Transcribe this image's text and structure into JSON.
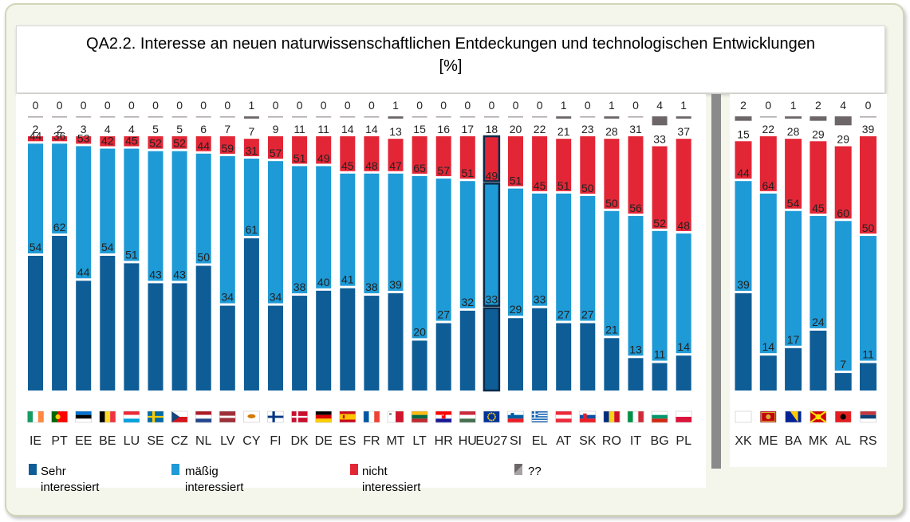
{
  "title": {
    "line1": "QA2.2. Interesse an neuen naturwissenschaftlichen Entdeckungen und technologischen Entwicklungen",
    "line2": "[%]"
  },
  "legend": [
    {
      "label": "Sehr",
      "label2": "interessiert",
      "color": "#0e5d96"
    },
    {
      "label": "mäßig",
      "label2": "interessiert",
      "color": "#1e9ad6"
    },
    {
      "label": "nicht",
      "label2": "interessiert",
      "color": "#e32636"
    },
    {
      "label": "??",
      "label2": "",
      "color": "#6d6668"
    }
  ],
  "colors": {
    "sehr": "#0e5d96",
    "maessig": "#1e9ad6",
    "nicht": "#e32636",
    "unknown": "#6d6668",
    "highlight_border": "#0a2a4a"
  },
  "chart_data": [
    {
      "type": "bar",
      "stacked": true,
      "orientation": "vertical",
      "categories": [
        "IE",
        "PT",
        "EE",
        "BE",
        "LU",
        "SE",
        "CZ",
        "NL",
        "LV",
        "CY",
        "FI",
        "DK",
        "DE",
        "ES",
        "FR",
        "MT",
        "LT",
        "HR",
        "HU",
        "EU27",
        "SI",
        "EL",
        "AT",
        "SK",
        "RO",
        "IT",
        "BG",
        "PL"
      ],
      "highlight": "EU27",
      "flag_icons": [
        "flag-ie-icon",
        "flag-pt-icon",
        "flag-ee-icon",
        "flag-be-icon",
        "flag-lu-icon",
        "flag-se-icon",
        "flag-cz-icon",
        "flag-nl-icon",
        "flag-lv-icon",
        "flag-cy-icon",
        "flag-fi-icon",
        "flag-dk-icon",
        "flag-de-icon",
        "flag-es-icon",
        "flag-fr-icon",
        "flag-mt-icon",
        "flag-lt-icon",
        "flag-hr-icon",
        "flag-hu-icon",
        "flag-eu-icon",
        "flag-si-icon",
        "flag-el-icon",
        "flag-at-icon",
        "flag-sk-icon",
        "flag-ro-icon",
        "flag-it-icon",
        "flag-bg-icon",
        "flag-pl-icon"
      ],
      "series": [
        {
          "name": "Sehr interessiert",
          "values": [
            54,
            62,
            44,
            54,
            51,
            43,
            43,
            50,
            34,
            61,
            34,
            38,
            40,
            41,
            38,
            39,
            20,
            27,
            32,
            33,
            29,
            33,
            27,
            27,
            21,
            13,
            11,
            14
          ]
        },
        {
          "name": "mäßig interessiert",
          "values": [
            44,
            36,
            53,
            42,
            45,
            52,
            52,
            44,
            59,
            31,
            57,
            51,
            49,
            45,
            48,
            47,
            65,
            57,
            51,
            49,
            51,
            45,
            51,
            50,
            50,
            56,
            52,
            48
          ]
        },
        {
          "name": "nicht interessiert",
          "values": [
            2,
            2,
            3,
            4,
            4,
            5,
            5,
            6,
            7,
            7,
            9,
            11,
            11,
            14,
            14,
            13,
            15,
            16,
            17,
            18,
            20,
            22,
            21,
            23,
            28,
            31,
            33,
            37
          ]
        },
        {
          "name": "??",
          "values": [
            0,
            0,
            0,
            0,
            0,
            0,
            0,
            0,
            0,
            1,
            0,
            0,
            0,
            0,
            0,
            1,
            0,
            0,
            0,
            0,
            0,
            0,
            1,
            0,
            1,
            0,
            4,
            1
          ]
        }
      ],
      "ylim": [
        0,
        100
      ]
    },
    {
      "type": "bar",
      "stacked": true,
      "orientation": "vertical",
      "categories": [
        "XK",
        "ME",
        "BA",
        "MK",
        "AL",
        "RS"
      ],
      "flag_icons": [
        "flag-xk-icon",
        "flag-me-icon",
        "flag-ba-icon",
        "flag-mk-icon",
        "flag-al-icon",
        "flag-rs-icon"
      ],
      "series": [
        {
          "name": "Sehr interessiert",
          "values": [
            39,
            14,
            17,
            24,
            7,
            11
          ]
        },
        {
          "name": "mäßig interessiert",
          "values": [
            44,
            64,
            54,
            45,
            60,
            50
          ]
        },
        {
          "name": "nicht interessiert",
          "values": [
            15,
            22,
            28,
            29,
            29,
            39
          ]
        },
        {
          "name": "??",
          "values": [
            2,
            0,
            1,
            2,
            4,
            0
          ]
        }
      ],
      "ylim": [
        0,
        100
      ]
    }
  ]
}
